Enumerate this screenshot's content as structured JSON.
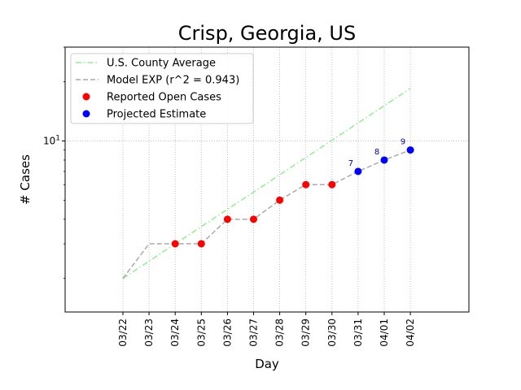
{
  "chart_data": {
    "type": "line",
    "title": "Crisp, Georgia, US",
    "xlabel": "Day",
    "ylabel": "# Cases",
    "categories": [
      "03/22",
      "03/23",
      "03/24",
      "03/25",
      "03/26",
      "03/27",
      "03/28",
      "03/29",
      "03/30",
      "03/31",
      "04/01",
      "04/02"
    ],
    "yscale": "log",
    "ylim": [
      1.35,
      30
    ],
    "y_ticks": [
      {
        "value": 10,
        "label": "10^1"
      }
    ],
    "grid": true,
    "legend_position": "top-left",
    "series": [
      {
        "name": "U.S. County Average",
        "style": "dash-dot",
        "color": "#90ee90",
        "x": [
          "03/22",
          "04/02"
        ],
        "values": [
          2.0,
          18.5
        ]
      },
      {
        "name": "Model EXP (r^2 = 0.943)",
        "style": "dashed",
        "color": "#aaaaaa",
        "x": [
          "03/22",
          "03/23",
          "03/24",
          "03/25",
          "03/26",
          "03/27",
          "03/28",
          "03/29",
          "03/30",
          "03/31",
          "04/01",
          "04/02"
        ],
        "values": [
          2,
          3,
          3,
          3,
          4,
          4,
          5,
          6,
          6,
          7,
          8,
          9
        ]
      },
      {
        "name": "Reported Open Cases",
        "style": "markers",
        "color": "#ff0000",
        "x": [
          "03/24",
          "03/25",
          "03/26",
          "03/27",
          "03/28",
          "03/29",
          "03/30"
        ],
        "values": [
          3,
          3,
          4,
          4,
          5,
          6,
          6
        ]
      },
      {
        "name": "Projected Estimate",
        "style": "markers",
        "color": "#0000ff",
        "x": [
          "03/31",
          "04/01",
          "04/02"
        ],
        "values": [
          7,
          8,
          9
        ],
        "labels": [
          "7",
          "8",
          "9"
        ]
      }
    ]
  }
}
